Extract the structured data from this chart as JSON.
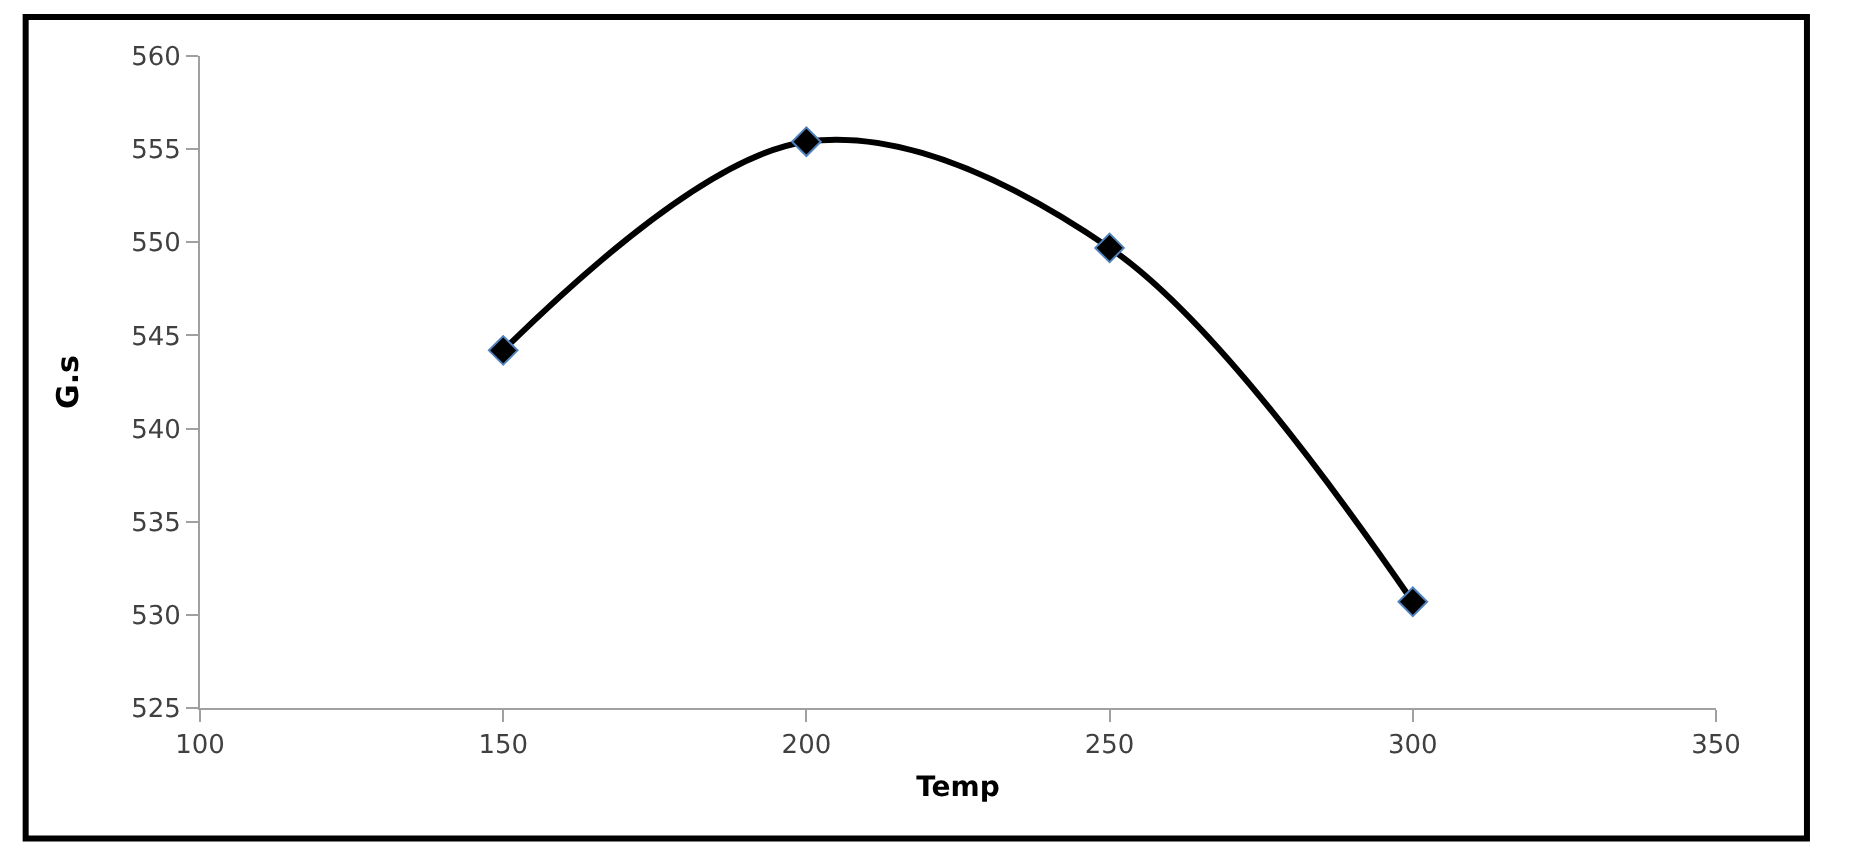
{
  "chart_data": {
    "type": "line",
    "xlabel": "Temp",
    "ylabel": "G.s",
    "x": [
      150,
      200,
      250,
      300
    ],
    "series": [
      {
        "color": "#000000",
        "values": [
          544.2,
          555.4,
          549.7,
          530.7
        ]
      }
    ],
    "xlim": [
      100,
      350
    ],
    "xticks": [
      100,
      150,
      200,
      250,
      300,
      350
    ],
    "ylim": [
      525,
      560
    ],
    "yticks": [
      525,
      530,
      535,
      540,
      545,
      550,
      555,
      560
    ],
    "marker": "diamond",
    "line_style": "solid"
  }
}
